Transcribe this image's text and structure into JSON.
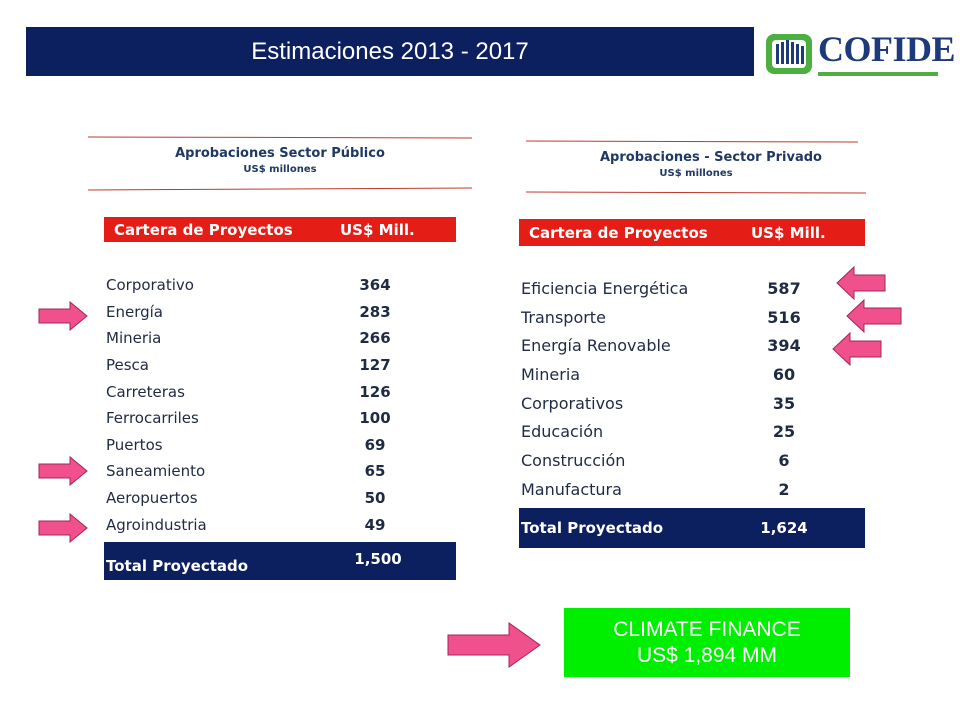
{
  "title": "Estimaciones 2013 - 2017",
  "logo": {
    "text": "COFIDE",
    "icon": "cofide-logo-icon"
  },
  "public": {
    "heading": "Aprobaciones Sector Público",
    "subheading": "US$ millones",
    "col_project": "Cartera de Proyectos",
    "col_value": "US$ Mill.",
    "rows": [
      {
        "label": "Corporativo",
        "value": "364"
      },
      {
        "label": "Energía",
        "value": "283"
      },
      {
        "label": "Mineria",
        "value": "266"
      },
      {
        "label": "Pesca",
        "value": "127"
      },
      {
        "label": "Carreteras",
        "value": "126"
      },
      {
        "label": "Ferrocarriles",
        "value": "100"
      },
      {
        "label": "Puertos",
        "value": "69"
      },
      {
        "label": "Saneamiento",
        "value": "65"
      },
      {
        "label": "Aeropuertos",
        "value": "50"
      },
      {
        "label": "Agroindustria",
        "value": "49"
      }
    ],
    "total_label": "Total Proyectado",
    "total_value": "1,500"
  },
  "private": {
    "heading": "Aprobaciones  - Sector Privado",
    "subheading": "US$ millones",
    "col_project": "Cartera de Proyectos",
    "col_value": "US$ Mill.",
    "rows": [
      {
        "label": "Eficiencia Energética",
        "value": "587"
      },
      {
        "label": "Transporte",
        "value": "516"
      },
      {
        "label": "Energía Renovable",
        "value": "394"
      },
      {
        "label": "Mineria",
        "value": "60"
      },
      {
        "label": "Corporativos",
        "value": "35"
      },
      {
        "label": "Educación",
        "value": "25"
      },
      {
        "label": "Construcción",
        "value": "6"
      },
      {
        "label": "Manufactura",
        "value": "2"
      }
    ],
    "total_label": "Total Proyectado",
    "total_value": "1,624"
  },
  "climate": {
    "line1": "CLIMATE FINANCE",
    "line2": "US$ 1,894 MM"
  },
  "colors": {
    "navy": "#0c1f5e",
    "red": "#e41e16",
    "pink_arrow": "#f0508c",
    "green": "#00ee00"
  }
}
